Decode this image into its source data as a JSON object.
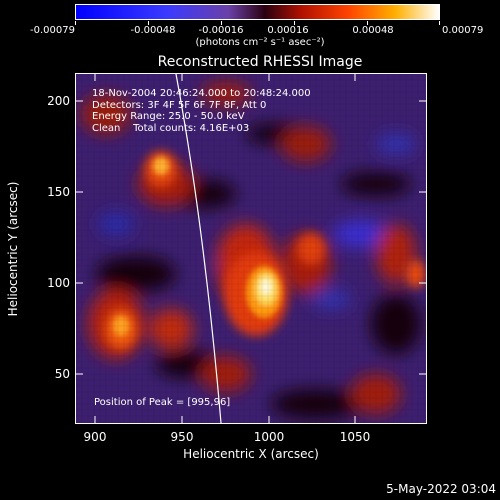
{
  "colorbar": {
    "tick_labels": [
      "-0.00079",
      "-0.00048",
      "-0.00016",
      "0.00016",
      "0.00048",
      "0.00079"
    ],
    "units": "(photons cm⁻² s⁻¹ asec⁻²)"
  },
  "title": "Reconstructed RHESSI Image",
  "annotations": {
    "time_range": "18-Nov-2004 20:46:24.000 to 20:48:24.000",
    "detectors": "Detectors: 3F 4F 5F 6F 7F 8F, Att 0",
    "energy": "Energy Range: 25.0 - 50.0 keV",
    "clean": "Clean    Total counts: 4.16E+03",
    "peak": "Position of Peak = [995,96]"
  },
  "axes": {
    "xlabel": "Heliocentric X (arcsec)",
    "ylabel": "Heliocentric Y (arcsec)",
    "x_ticks": [
      "900",
      "950",
      "1000",
      "1050"
    ],
    "y_ticks": [
      "200",
      "150",
      "100",
      "50"
    ]
  },
  "footer": {
    "date": "5-May-2022 03:04"
  },
  "colors": {
    "background": "#000000",
    "limb": "#ffffff",
    "text": "#ffffff"
  }
}
